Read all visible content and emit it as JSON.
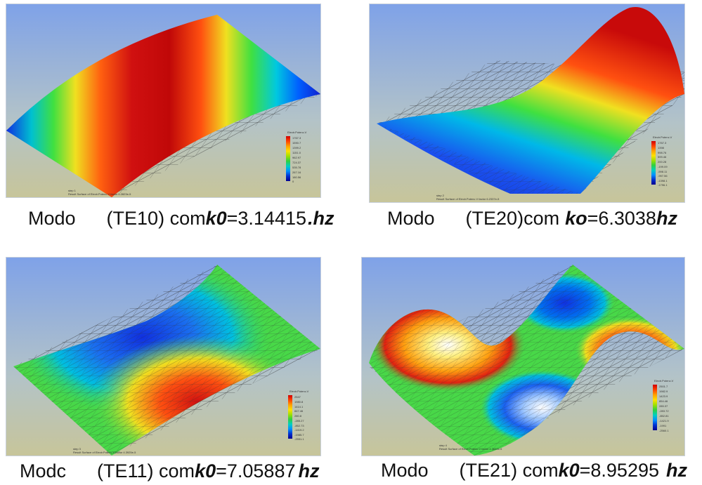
{
  "panels": [
    {
      "mode": "Modo",
      "mode_label": "(TE10) com",
      "k_symbol": "k0",
      "k_value": "=3.14415",
      "unit": ".hz",
      "legend_title": "Electr.Potenc.V",
      "legend_values": [
        "1767.3",
        "1590.7",
        "1399.2",
        "1151.0",
        "962.97",
        "724.37",
        "535.78",
        "267.16",
        "180.56",
        "0"
      ],
      "footer_step": "step 1",
      "footer_result": "Result Surface of Electr.Potenc.V factor 6.2823e-5"
    },
    {
      "mode": "Modo",
      "mode_label": "(TE20)com",
      "k_symbol": "ko",
      "k_value": "=6.3038",
      "unit": "hz",
      "legend_title": "Electr.Potenc.V",
      "legend_values": [
        "1767.3",
        "1398",
        "998.76",
        "599.46",
        "200.28",
        "-199.09",
        "-598.11",
        "-997.56",
        "-1398.1",
        "-1796.1"
      ],
      "footer_step": "step 2",
      "footer_result": "Result Surface of Electr.Potenc.V factor 6.2337e-5"
    },
    {
      "mode": "Modc",
      "mode_label": "(TE11) com",
      "k_symbol": "k0",
      "k_value": "=7.05887",
      "unit": "hz",
      "legend_title": "Electr.Potenc.V",
      "legend_values": [
        "2547",
        "1980.8",
        "1414.1",
        "847.46",
        "280.8",
        "-285.27",
        "-852.73",
        "-1419.2",
        "-1985.7",
        "-2551.1"
      ],
      "footer_step": "step 3",
      "footer_result": "Result Surface of Electr.Potenc.V factor 4.3925e-5"
    },
    {
      "mode": "Modo",
      "mode_label": "(TE21) com",
      "k_symbol": "k0",
      "k_value": "=8.95295",
      "unit": "hz",
      "legend_title": "Electr.Potenc.V",
      "legend_values": [
        "2501.7",
        "1982.9",
        "1423.9",
        "854.46",
        "285.37",
        "-283.72",
        "-852.81",
        "-1421.9",
        "-1991",
        "-2560.1"
      ],
      "footer_step": "step 4",
      "footer_result": "Result Surface of Electr.Potenc.V factor 4.3644e-5"
    }
  ]
}
